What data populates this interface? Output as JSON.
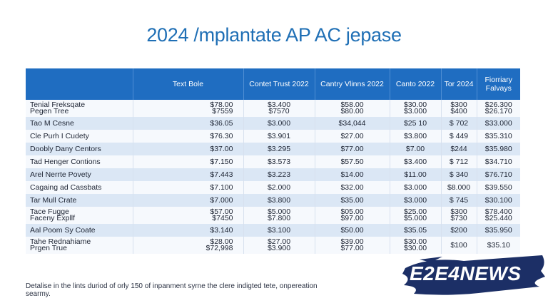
{
  "title": "2024 /mplantate AP AC jepase",
  "columns": [
    "",
    "Text Bole",
    "Contet Trust 2022",
    "Cantry Vlinns 2022",
    "Canto 2022",
    "Tor 2024",
    "Fiorriary Falvays"
  ],
  "rows": [
    {
      "name": [
        "Tenial Freksqate",
        "Pegen Tree"
      ],
      "cells": [
        [
          "$78.00",
          "$7559"
        ],
        [
          "$3.400",
          "$7570"
        ],
        [
          "$58.00",
          "$80.00"
        ],
        [
          "$30.00",
          "$3.000"
        ],
        [
          "$300",
          "$400"
        ],
        [
          "$26.300",
          "$26.170"
        ]
      ]
    },
    {
      "name": [
        "Tao M Cesne"
      ],
      "cells": [
        [
          "$36.05"
        ],
        [
          "$3.000"
        ],
        [
          "$34,044"
        ],
        [
          "$25 10"
        ],
        [
          "$ 702"
        ],
        [
          "$33.000"
        ]
      ]
    },
    {
      "name": [
        "Cle Purh I Cudety"
      ],
      "cells": [
        [
          "$76.30"
        ],
        [
          "$3.901"
        ],
        [
          "$27.00"
        ],
        [
          "$3.800"
        ],
        [
          "$ 449"
        ],
        [
          "$35.310"
        ]
      ]
    },
    {
      "name": [
        "Doobly Dany Centors"
      ],
      "cells": [
        [
          "$37.00"
        ],
        [
          "$3.295"
        ],
        [
          "$77.00"
        ],
        [
          "$7.00"
        ],
        [
          "$244"
        ],
        [
          "$35.980"
        ]
      ]
    },
    {
      "name": [
        "Tad Henger Contions"
      ],
      "cells": [
        [
          "$7.150"
        ],
        [
          "$3.573"
        ],
        [
          "$57.50"
        ],
        [
          "$3.400"
        ],
        [
          "$ 712"
        ],
        [
          "$34.710"
        ]
      ]
    },
    {
      "name": [
        "Arel Nerrte Povety"
      ],
      "cells": [
        [
          "$7.443"
        ],
        [
          "$3.223"
        ],
        [
          "$14.00"
        ],
        [
          "$11.00"
        ],
        [
          "$ 340"
        ],
        [
          "$76.710"
        ]
      ]
    },
    {
      "name": [
        "Cagaing ad Cassbats"
      ],
      "cells": [
        [
          "$7.100"
        ],
        [
          "$2.000"
        ],
        [
          "$32.00"
        ],
        [
          "$3.000"
        ],
        [
          "$8.000"
        ],
        [
          "$39.550"
        ]
      ]
    },
    {
      "name": [
        "Tar Mull Crate"
      ],
      "cells": [
        [
          "$7.000"
        ],
        [
          "$3.800"
        ],
        [
          "$35.00"
        ],
        [
          "$3.000"
        ],
        [
          "$ 745"
        ],
        [
          "$30.100"
        ]
      ]
    },
    {
      "name": [
        "Tace Fugge",
        "Faceny Expllf"
      ],
      "cells": [
        [
          "$57.00",
          "$7450"
        ],
        [
          "$5.000",
          "$7.800"
        ],
        [
          "$05.00",
          "$97.00"
        ],
        [
          "$25.00",
          "$5.000"
        ],
        [
          "$300",
          "$730"
        ],
        [
          "$78.400",
          "$25.440"
        ]
      ]
    },
    {
      "name": [
        "Aal Poom Sy Coate"
      ],
      "cells": [
        [
          "$3.140"
        ],
        [
          "$3.100"
        ],
        [
          "$50.00"
        ],
        [
          "$35.05"
        ],
        [
          "$200"
        ],
        [
          "$35.950"
        ]
      ]
    },
    {
      "name": [
        "Tahe Rednahiame",
        "Prgen True"
      ],
      "cells": [
        [
          "$28.00",
          "$72,998"
        ],
        [
          "$27.00",
          "$3.900"
        ],
        [
          "$39.00",
          "$77.00"
        ],
        [
          "$30.00",
          "$30.00"
        ],
        [
          "$100",
          ""
        ],
        [
          "$35.10",
          ""
        ]
      ]
    }
  ],
  "footnote": "Detalise in the lints duriod of orly 150 of inpanment syrne the clere indigted tete, onpereation searmy.",
  "logo": {
    "text": "E2E4NEWS",
    "bg_color": "#1c2f66",
    "text_color": "#ffffff"
  },
  "colors": {
    "header_bg": "#1f6dc1",
    "title": "#1f6fb5",
    "stripe": "#dbe7f5"
  }
}
